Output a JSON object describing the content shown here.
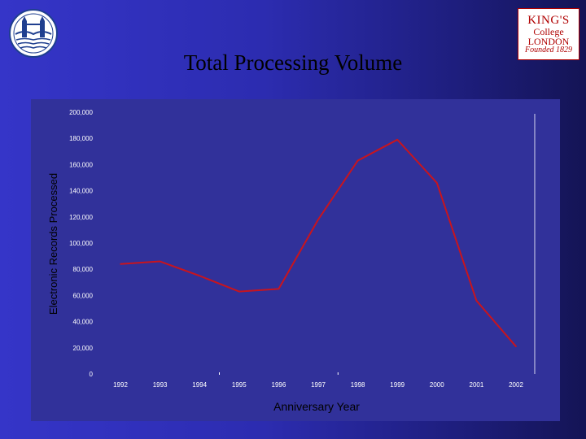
{
  "slide": {
    "title": "Total Processing Volume"
  },
  "logos": {
    "left": {
      "name": "tower-bridge-crest"
    },
    "right": {
      "line1": "KING'S",
      "line2": "College",
      "line3": "LONDON",
      "line4": "Founded 1829"
    }
  },
  "colors": {
    "series_line": "#c8141e",
    "axis_text": "#ffffff",
    "panel": "#31319a"
  },
  "chart_data": {
    "type": "line",
    "title": "",
    "xlabel": "Anniversary Year",
    "ylabel": "Electronic Records Processed",
    "categories": [
      "1992",
      "1993",
      "1994",
      "1995",
      "1996",
      "1997",
      "1998",
      "1999",
      "2000",
      "2001",
      "2002"
    ],
    "ylim": [
      0,
      200000
    ],
    "ytick_labels": [
      "0",
      "20,000",
      "40,000",
      "60,000",
      "80,000",
      "100,000",
      "120,000",
      "140,000",
      "160,000",
      "180,000",
      "200,000"
    ],
    "series": [
      {
        "values": [
          84000,
          86000,
          75000,
          63000,
          65000,
          118000,
          163000,
          179000,
          146000,
          56000,
          21000
        ]
      }
    ],
    "grid": false,
    "legend": "none"
  }
}
